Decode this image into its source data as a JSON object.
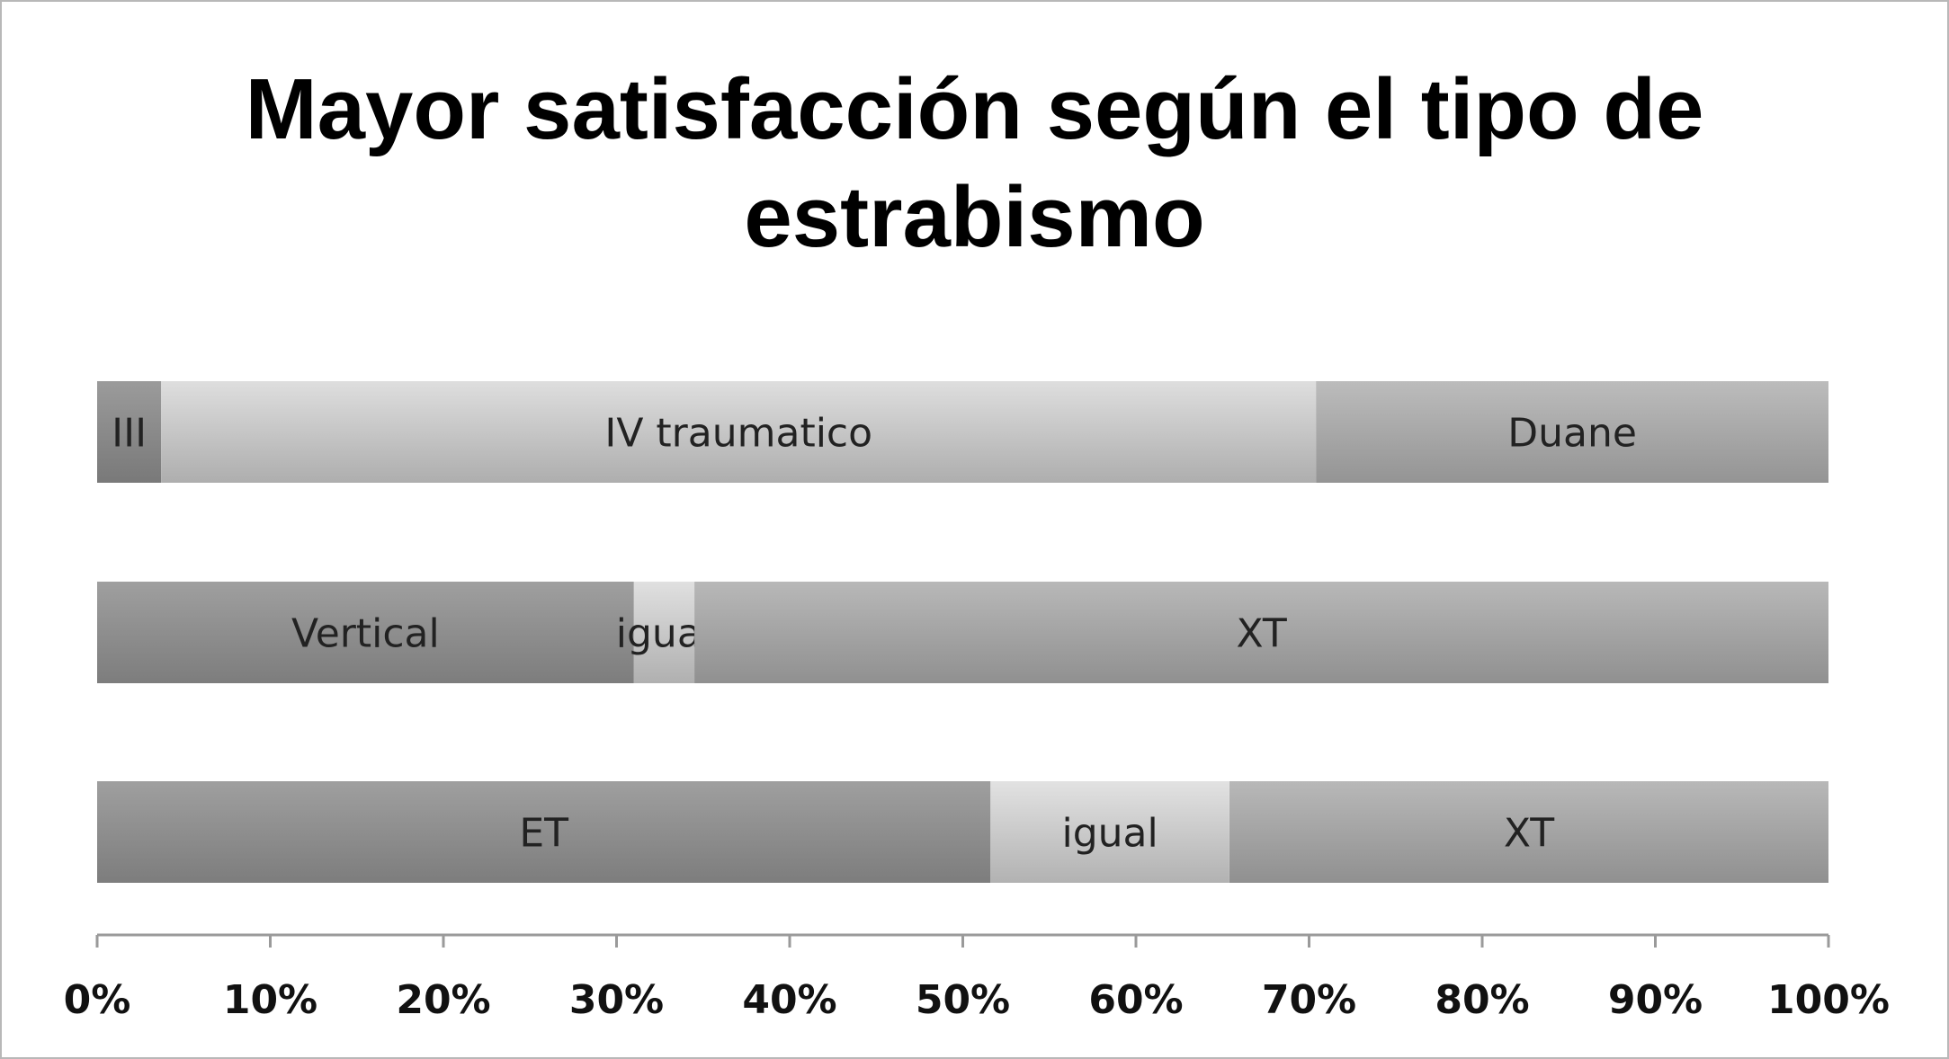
{
  "chart_data": {
    "type": "bar",
    "orientation": "horizontal",
    "stacked": true,
    "title_lines": [
      "Mayor satisfacción según el tipo de",
      "estrabismo"
    ],
    "xlim": [
      0,
      100
    ],
    "x_ticks": [
      "0%",
      "10%",
      "20%",
      "30%",
      "40%",
      "50%",
      "60%",
      "70%",
      "80%",
      "90%",
      "100%"
    ],
    "grid": false,
    "legend": "none",
    "rows": [
      {
        "segments": [
          {
            "label": "III",
            "value": 3.7,
            "color": "#8a8a8a"
          },
          {
            "label": "IV traumatico",
            "value": 66.7,
            "color": "#c6c6c6"
          },
          {
            "label": "Duane",
            "value": 29.6,
            "color": "#a8a8a8"
          }
        ]
      },
      {
        "segments": [
          {
            "label": "Vertical",
            "value": 31.0,
            "color": "#8e8e8e"
          },
          {
            "label": "igual",
            "value": 3.5,
            "color": "#c8c8c8"
          },
          {
            "label": "XT",
            "value": 65.5,
            "color": "#a4a4a4"
          }
        ]
      },
      {
        "segments": [
          {
            "label": "ET",
            "value": 51.6,
            "color": "#8e8e8e"
          },
          {
            "label": "igual",
            "value": 13.8,
            "color": "#cacaca"
          },
          {
            "label": "XT",
            "value": 34.6,
            "color": "#a4a4a4"
          }
        ]
      }
    ]
  }
}
